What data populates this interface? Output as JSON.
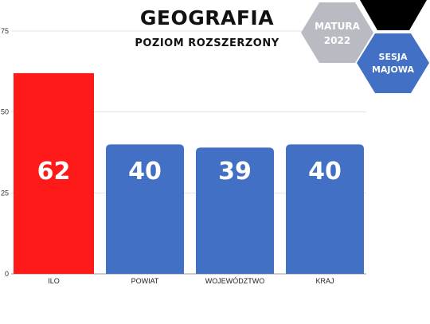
{
  "chart_data": {
    "type": "bar",
    "title": "GEOGRAFIA",
    "subtitle": "POZIOM ROZSZERZONY",
    "categories": [
      "ILO",
      "POWIAT",
      "WOJEWÓDZTWO",
      "KRAJ"
    ],
    "values": [
      62,
      40,
      39,
      40
    ],
    "data_labels": [
      "62",
      "40",
      "39",
      "40"
    ],
    "yticks": [
      0,
      25,
      50,
      75
    ],
    "ylim": [
      0,
      75
    ],
    "grid": true,
    "colors": [
      "#ff1a1a",
      "#4270c4",
      "#4270c4",
      "#4270c4"
    ]
  },
  "badges": {
    "matura_line1": "MATURA",
    "matura_line2": "2022",
    "sesja_line1": "SESJA",
    "sesja_line2": "MAJOWA",
    "matura_color": "#b8bcc2",
    "sesja_color": "#4270c4",
    "black_color": "#000000"
  }
}
